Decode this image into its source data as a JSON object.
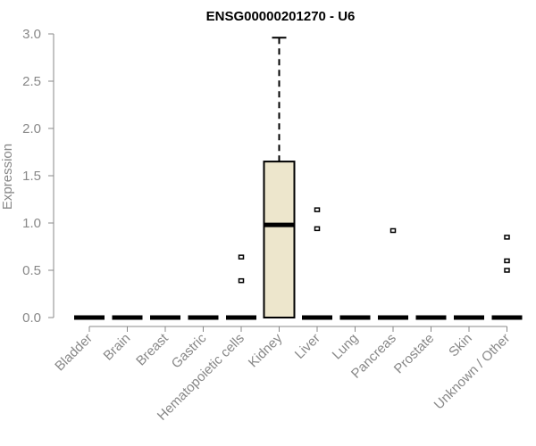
{
  "chart_data": {
    "type": "box",
    "title": "ENSG00000201270 - U6",
    "xlabel": "",
    "ylabel": "Expression",
    "ylim": [
      0,
      3.0
    ],
    "yticks": [
      "0.0",
      "0.5",
      "1.0",
      "1.5",
      "2.0",
      "2.5",
      "3.0"
    ],
    "grid": false,
    "legend": "none",
    "box_fill": "#ede6cc",
    "categories": [
      "Bladder",
      "Brain",
      "Breast",
      "Gastric",
      "Hematopoietic cells",
      "Kidney",
      "Liver",
      "Lung",
      "Pancreas",
      "Prostate",
      "Skin",
      "Unknown / Other"
    ],
    "boxes": [
      {
        "category": "Bladder",
        "min": 0,
        "q1": 0,
        "median": 0,
        "q3": 0,
        "max": 0,
        "outliers": []
      },
      {
        "category": "Brain",
        "min": 0,
        "q1": 0,
        "median": 0,
        "q3": 0,
        "max": 0,
        "outliers": []
      },
      {
        "category": "Breast",
        "min": 0,
        "q1": 0,
        "median": 0,
        "q3": 0,
        "max": 0,
        "outliers": []
      },
      {
        "category": "Gastric",
        "min": 0,
        "q1": 0,
        "median": 0,
        "q3": 0,
        "max": 0,
        "outliers": []
      },
      {
        "category": "Hematopoietic cells",
        "min": 0,
        "q1": 0,
        "median": 0,
        "q3": 0,
        "max": 0,
        "outliers": [
          0.64,
          0.39
        ]
      },
      {
        "category": "Kidney",
        "min": 0,
        "q1": 0,
        "median": 0.98,
        "q3": 1.65,
        "max": 2.96,
        "outliers": []
      },
      {
        "category": "Liver",
        "min": 0,
        "q1": 0,
        "median": 0,
        "q3": 0,
        "max": 0,
        "outliers": [
          1.14,
          0.94
        ]
      },
      {
        "category": "Lung",
        "min": 0,
        "q1": 0,
        "median": 0,
        "q3": 0,
        "max": 0,
        "outliers": []
      },
      {
        "category": "Pancreas",
        "min": 0,
        "q1": 0,
        "median": 0,
        "q3": 0,
        "max": 0,
        "outliers": [
          0.92
        ]
      },
      {
        "category": "Prostate",
        "min": 0,
        "q1": 0,
        "median": 0,
        "q3": 0,
        "max": 0,
        "outliers": []
      },
      {
        "category": "Skin",
        "min": 0,
        "q1": 0,
        "median": 0,
        "q3": 0,
        "max": 0,
        "outliers": []
      },
      {
        "category": "Unknown / Other",
        "min": 0,
        "q1": 0,
        "median": 0,
        "q3": 0,
        "max": 0,
        "outliers": [
          0.85,
          0.6,
          0.5
        ]
      }
    ]
  }
}
